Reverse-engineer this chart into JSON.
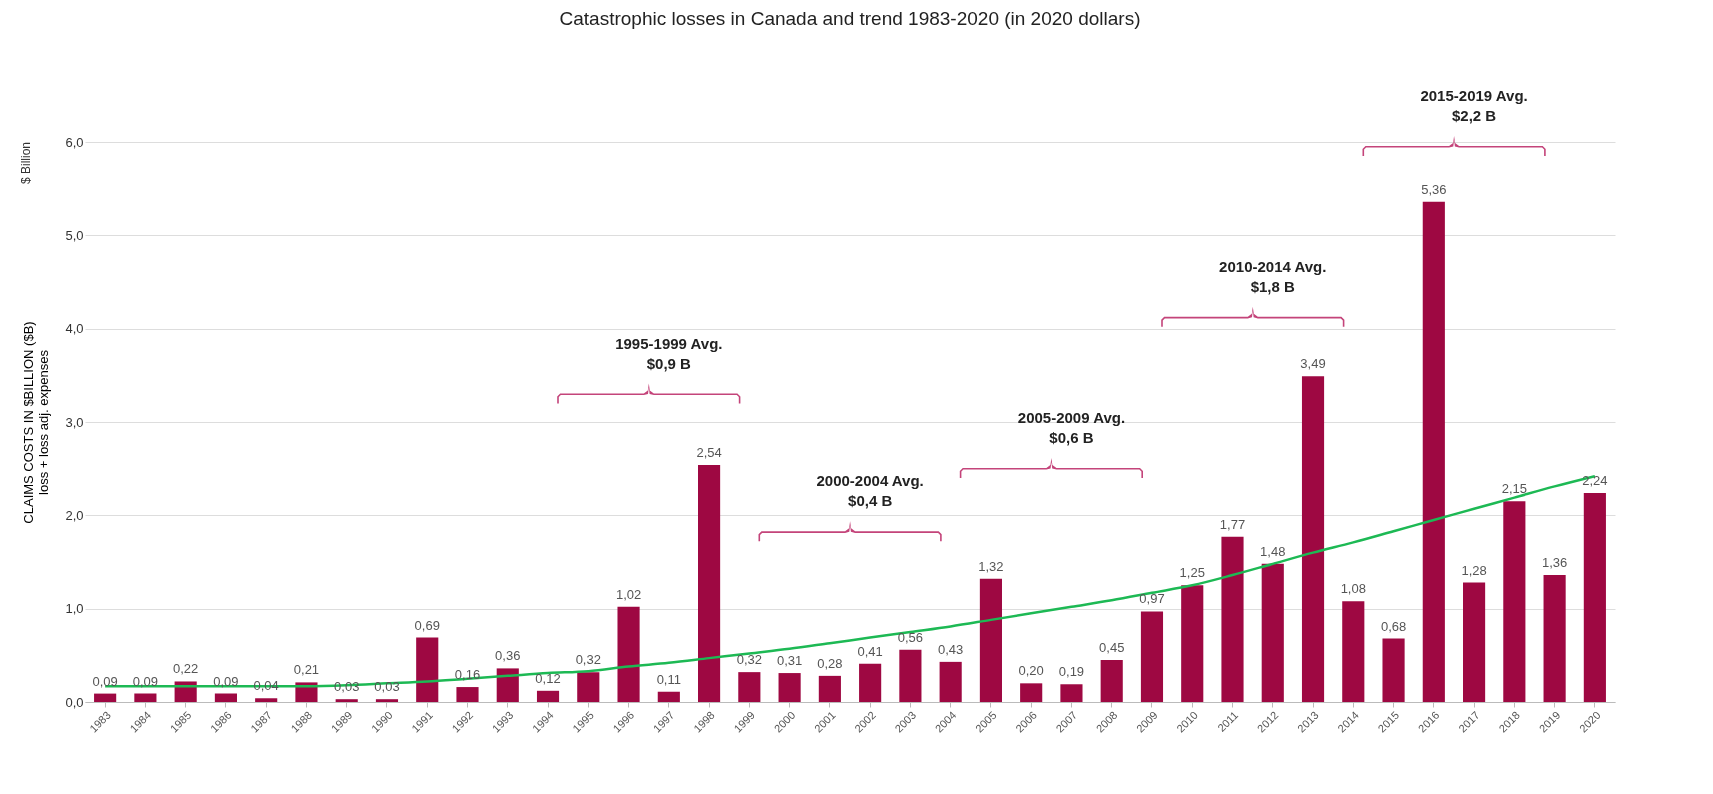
{
  "chart_data": {
    "type": "bar",
    "title": "Catastrophic losses in Canada and trend 1983-2020 (in 2020 dollars)",
    "ylabel": "CLAIMS COSTS IN $BILLION ($B)\nloss + loss adj. expenses",
    "categories": [
      "1983",
      "1984",
      "1985",
      "1986",
      "1987",
      "1988",
      "1989",
      "1990",
      "1991",
      "1992",
      "1993",
      "1994",
      "1995",
      "1996",
      "1997",
      "1998",
      "1999",
      "2000",
      "2001",
      "2002",
      "2003",
      "2004",
      "2005",
      "2006",
      "2007",
      "2008",
      "2009",
      "2010",
      "2011",
      "2012",
      "2013",
      "2014",
      "2015",
      "2016",
      "2017",
      "2018",
      "2019",
      "2020"
    ],
    "series": [
      {
        "color": "#9e0842",
        "values": [
          0.09,
          0.09,
          0.22,
          0.09,
          0.04,
          0.21,
          0.03,
          0.03,
          0.69,
          0.16,
          0.36,
          0.12,
          0.32,
          1.02,
          0.11,
          2.54,
          0.32,
          0.31,
          0.28,
          0.41,
          0.56,
          0.43,
          1.32,
          0.2,
          0.19,
          0.45,
          0.97,
          1.25,
          1.77,
          1.48,
          3.49,
          1.08,
          0.68,
          5.36,
          1.28,
          2.15,
          1.36,
          2.24
        ],
        "value_labels": [
          "0,09",
          "0,09",
          "0,22",
          "0,09",
          "0,04",
          "0,21",
          "0,03",
          "0,03",
          "0,69",
          "0,16",
          "0,36",
          "0,12",
          "0,32",
          "1,02",
          "0,11",
          "2,54",
          "0,32",
          "0,31",
          "0,28",
          "0,41",
          "0,56",
          "0,43",
          "1,32",
          "0,20",
          "0,19",
          "0,45",
          "0,97",
          "1,25",
          "1,77",
          "1,48",
          "3,49",
          "1,08",
          "0,68",
          "5,36",
          "1,28",
          "2,15",
          "1,36",
          "2,24"
        ]
      },
      {
        "type": "line",
        "color": "#1db954",
        "values": [
          0.17,
          0.17,
          0.17,
          0.17,
          0.17,
          0.17,
          0.18,
          0.2,
          0.22,
          0.25,
          0.28,
          0.31,
          0.33,
          0.38,
          0.42,
          0.47,
          0.52,
          0.57,
          0.63,
          0.69,
          0.75,
          0.81,
          0.88,
          0.95,
          1.02,
          1.09,
          1.17,
          1.25,
          1.36,
          1.48,
          1.6,
          1.71,
          1.83,
          1.95,
          2.07,
          2.19,
          2.31,
          2.42
        ]
      }
    ],
    "ylim": [
      0,
      6
    ],
    "yticks": [
      {
        "value": 0,
        "label": "0,0"
      },
      {
        "value": 1,
        "label": "1,0"
      },
      {
        "value": 2,
        "label": "2,0"
      },
      {
        "value": 3,
        "label": "3,0"
      },
      {
        "value": 4,
        "label": "4,0"
      },
      {
        "value": 5,
        "label": "5,0"
      },
      {
        "value": 6,
        "label": "6,0"
      }
    ],
    "grid": "y",
    "annotations": [
      "$ Billion",
      "1995-1999 Avg.\n$0,9 B",
      "2000-2004 Avg.\n$0,4 B",
      "2005-2009 Avg.\n$0,6 B",
      "2010-2014 Avg.\n$1,8 B",
      "2015-2019 Avg.\n$2,2 B"
    ]
  }
}
